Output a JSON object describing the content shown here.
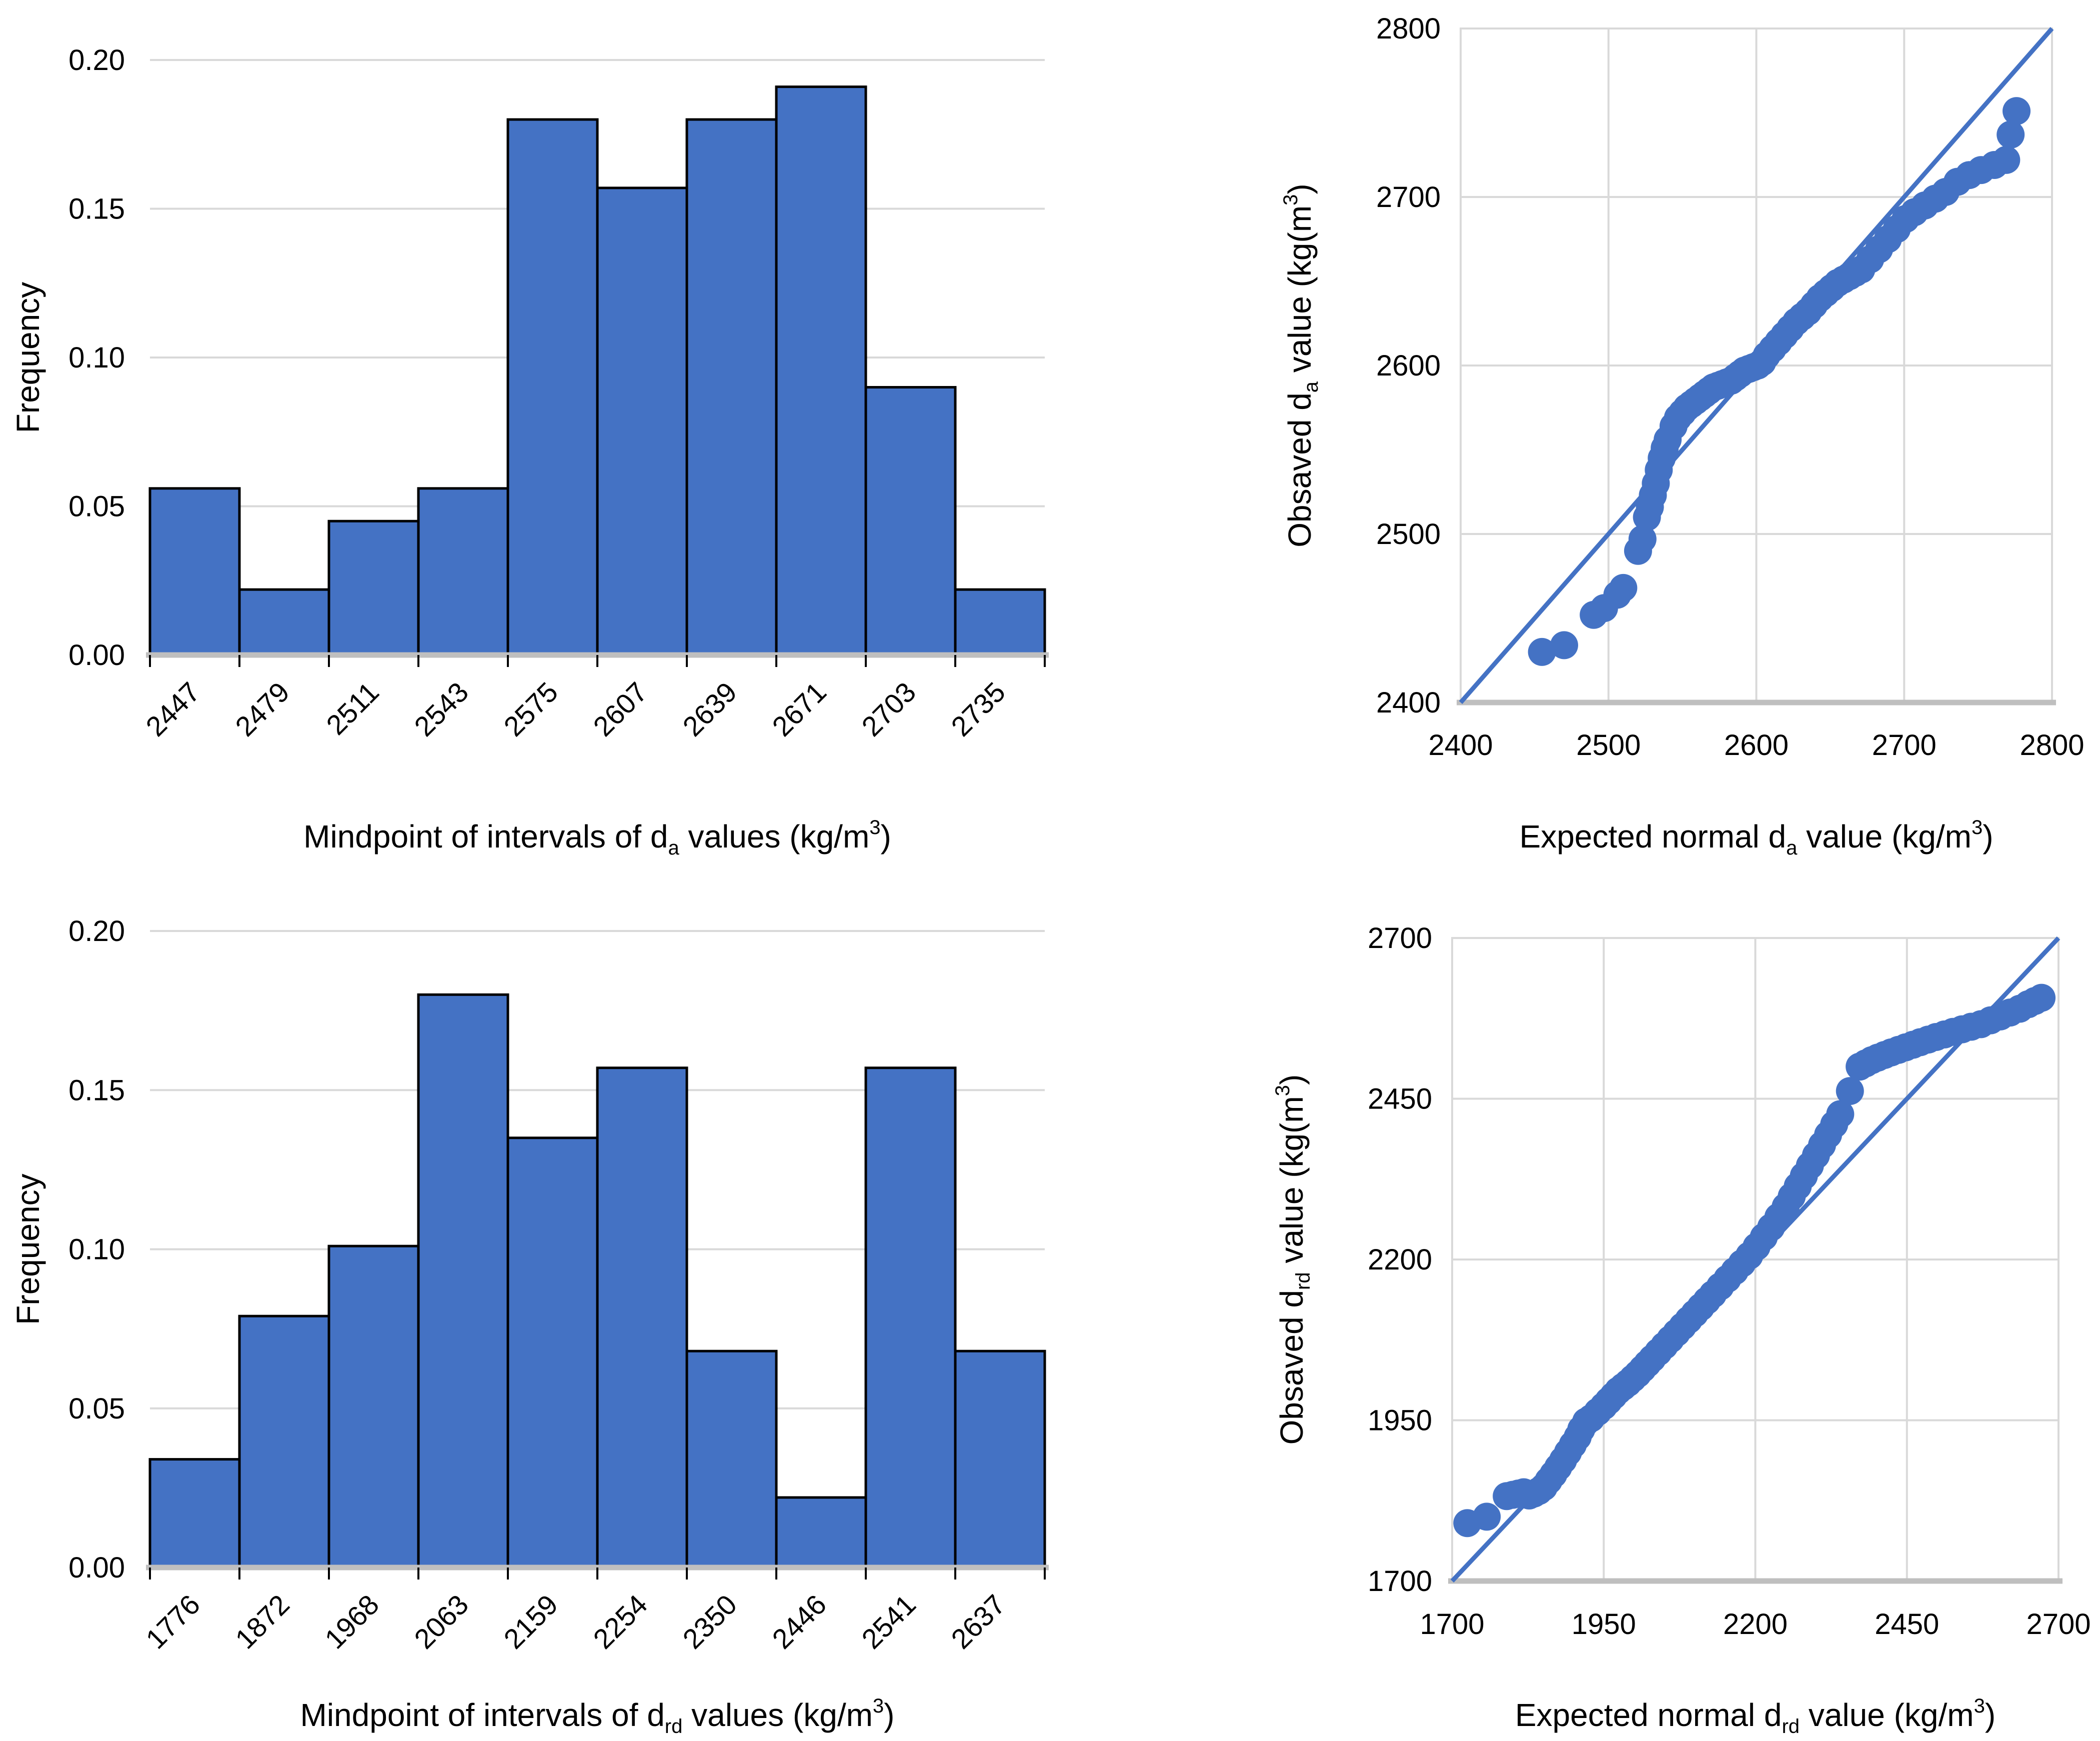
{
  "figure": {
    "background": "#ffffff",
    "accent_color": "#4472C4",
    "gridline_color": "#D9D9D9",
    "axis_line_color": "#BFBFBF",
    "bar_border_color": "#000000",
    "text_color": "#000000"
  },
  "chart_data": [
    {
      "id": "hist_da",
      "type": "bar",
      "title": "",
      "categories": [
        "2447",
        "2479",
        "2511",
        "2543",
        "2575",
        "2607",
        "2639",
        "2671",
        "2703",
        "2735"
      ],
      "values": [
        0.056,
        0.022,
        0.045,
        0.056,
        0.18,
        0.157,
        0.18,
        0.191,
        0.09,
        0.022
      ],
      "xlabel": "Mindpoint of intervals of da values (kg/m3)",
      "xlabel_parts": [
        {
          "t": "Mindpoint of intervals of d"
        },
        {
          "t": "a",
          "sub": true
        },
        {
          "t": " values (kg/m"
        },
        {
          "t": "3",
          "sup": true
        },
        {
          "t": ")"
        }
      ],
      "ylabel": "Frequency",
      "ytick_values": [
        0,
        0.05,
        0.1,
        0.15,
        0.2
      ],
      "ytick_labels": [
        "0.00",
        "0.05",
        "0.10",
        "0.15",
        "0.20"
      ],
      "ylim": [
        0,
        0.2
      ],
      "grid": true,
      "legend": "none"
    },
    {
      "id": "qq_da",
      "type": "scatter",
      "title": "",
      "xlabel": "Expected normal da value (kg/m3)",
      "xlabel_parts": [
        {
          "t": "Expected normal d"
        },
        {
          "t": "a",
          "sub": true
        },
        {
          "t": " value (kg/m"
        },
        {
          "t": "3",
          "sup": true
        },
        {
          "t": ")"
        }
      ],
      "ylabel": "Obsaved da value (kg(m3)",
      "ylabel_parts": [
        {
          "t": "Obsaved d"
        },
        {
          "t": "a",
          "sub": true
        },
        {
          "t": " value (kg(m"
        },
        {
          "t": "3",
          "sup": true
        },
        {
          "t": ")"
        }
      ],
      "xlim": [
        2400,
        2800
      ],
      "ylim": [
        2400,
        2800
      ],
      "xticks": [
        2400,
        2500,
        2600,
        2700,
        2800
      ],
      "yticks": [
        2400,
        2500,
        2600,
        2700,
        2800
      ],
      "grid": true,
      "legend": "none",
      "reference_line": {
        "x1": 2400,
        "y1": 2400,
        "x2": 2800,
        "y2": 2800
      },
      "points": [
        [
          2455,
          2430
        ],
        [
          2470,
          2434
        ],
        [
          2490,
          2452
        ],
        [
          2497,
          2456
        ],
        [
          2506,
          2464
        ],
        [
          2510,
          2468
        ],
        [
          2520,
          2490
        ],
        [
          2523,
          2497
        ],
        [
          2526,
          2510
        ],
        [
          2528,
          2516
        ],
        [
          2530,
          2523
        ],
        [
          2532,
          2530
        ],
        [
          2534,
          2538
        ],
        [
          2536,
          2545
        ],
        [
          2538,
          2551
        ],
        [
          2540,
          2556
        ],
        [
          2544,
          2564
        ],
        [
          2547,
          2569
        ],
        [
          2550,
          2572
        ],
        [
          2553,
          2575
        ],
        [
          2556,
          2577
        ],
        [
          2559,
          2579
        ],
        [
          2562,
          2581
        ],
        [
          2565,
          2583
        ],
        [
          2568,
          2585
        ],
        [
          2571,
          2587
        ],
        [
          2574,
          2588
        ],
        [
          2577,
          2589
        ],
        [
          2580,
          2590
        ],
        [
          2583,
          2591
        ],
        [
          2586,
          2593
        ],
        [
          2589,
          2595
        ],
        [
          2592,
          2597
        ],
        [
          2595,
          2598
        ],
        [
          2598,
          2599
        ],
        [
          2601,
          2600
        ],
        [
          2604,
          2602
        ],
        [
          2607,
          2606
        ],
        [
          2611,
          2610
        ],
        [
          2615,
          2614
        ],
        [
          2619,
          2618
        ],
        [
          2623,
          2622
        ],
        [
          2627,
          2626
        ],
        [
          2631,
          2629
        ],
        [
          2635,
          2632
        ],
        [
          2639,
          2636
        ],
        [
          2643,
          2640
        ],
        [
          2647,
          2643
        ],
        [
          2651,
          2646
        ],
        [
          2655,
          2649
        ],
        [
          2659,
          2651
        ],
        [
          2663,
          2653
        ],
        [
          2667,
          2655
        ],
        [
          2671,
          2657
        ],
        [
          2677,
          2663
        ],
        [
          2683,
          2669
        ],
        [
          2689,
          2675
        ],
        [
          2695,
          2681
        ],
        [
          2701,
          2687
        ],
        [
          2707,
          2691
        ],
        [
          2714,
          2695
        ],
        [
          2721,
          2699
        ],
        [
          2728,
          2703
        ],
        [
          2736,
          2709
        ],
        [
          2744,
          2713
        ],
        [
          2752,
          2716
        ],
        [
          2761,
          2719
        ],
        [
          2769,
          2722
        ],
        [
          2772,
          2737
        ],
        [
          2776,
          2751
        ]
      ]
    },
    {
      "id": "hist_drd",
      "type": "bar",
      "title": "",
      "categories": [
        "1776",
        "1872",
        "1968",
        "2063",
        "2159",
        "2254",
        "2350",
        "2446",
        "2541",
        "2637"
      ],
      "values": [
        0.034,
        0.079,
        0.101,
        0.18,
        0.135,
        0.157,
        0.068,
        0.022,
        0.157,
        0.068
      ],
      "xlabel": "Mindpoint of intervals of drd values (kg/m3)",
      "xlabel_parts": [
        {
          "t": "Mindpoint of intervals of d"
        },
        {
          "t": "rd",
          "sub": true
        },
        {
          "t": " values (kg/m"
        },
        {
          "t": "3",
          "sup": true
        },
        {
          "t": ")"
        }
      ],
      "ylabel": "Frequency",
      "ytick_values": [
        0,
        0.05,
        0.1,
        0.15,
        0.2
      ],
      "ytick_labels": [
        "0.00",
        "0.05",
        "0.10",
        "0.15",
        "0.20"
      ],
      "ylim": [
        0,
        0.2
      ],
      "grid": true,
      "legend": "none"
    },
    {
      "id": "qq_drd",
      "type": "scatter",
      "title": "",
      "xlabel": "Expected normal drd value (kg/m3)",
      "xlabel_parts": [
        {
          "t": "Expected normal d"
        },
        {
          "t": "rd",
          "sub": true
        },
        {
          "t": " value (kg/m"
        },
        {
          "t": "3",
          "sup": true
        },
        {
          "t": ")"
        }
      ],
      "ylabel": "Obsaved drd value (kg(m3)",
      "ylabel_parts": [
        {
          "t": "Obsaved d"
        },
        {
          "t": "rd",
          "sub": true
        },
        {
          "t": " value (kg(m"
        },
        {
          "t": "3",
          "sup": true
        },
        {
          "t": ")"
        }
      ],
      "xlim": [
        1700,
        2700
      ],
      "ylim": [
        1700,
        2700
      ],
      "xticks": [
        1700,
        1950,
        2200,
        2450,
        2700
      ],
      "yticks": [
        1700,
        1950,
        2200,
        2450,
        2700
      ],
      "grid": true,
      "legend": "none",
      "reference_line": {
        "x1": 1700,
        "y1": 1700,
        "x2": 2700,
        "y2": 2700
      },
      "points": [
        [
          1725,
          1790
        ],
        [
          1757,
          1800
        ],
        [
          1790,
          1832
        ],
        [
          1800,
          1834
        ],
        [
          1809,
          1836
        ],
        [
          1818,
          1838
        ],
        [
          1827,
          1833
        ],
        [
          1835,
          1836
        ],
        [
          1843,
          1840
        ],
        [
          1851,
          1846
        ],
        [
          1859,
          1856
        ],
        [
          1867,
          1866
        ],
        [
          1875,
          1877
        ],
        [
          1883,
          1888
        ],
        [
          1891,
          1900
        ],
        [
          1899,
          1912
        ],
        [
          1907,
          1924
        ],
        [
          1913,
          1936
        ],
        [
          1921,
          1948
        ],
        [
          1929,
          1953
        ],
        [
          1940,
          1963
        ],
        [
          1950,
          1972
        ],
        [
          1958,
          1980
        ],
        [
          1966,
          1988
        ],
        [
          1974,
          1996
        ],
        [
          1982,
          2002
        ],
        [
          1990,
          2008
        ],
        [
          1998,
          2015
        ],
        [
          2006,
          2022
        ],
        [
          2014,
          2030
        ],
        [
          2022,
          2038
        ],
        [
          2030,
          2046
        ],
        [
          2040,
          2056
        ],
        [
          2050,
          2066
        ],
        [
          2060,
          2076
        ],
        [
          2070,
          2086
        ],
        [
          2080,
          2096
        ],
        [
          2090,
          2106
        ],
        [
          2100,
          2116
        ],
        [
          2110,
          2126
        ],
        [
          2120,
          2136
        ],
        [
          2130,
          2146
        ],
        [
          2142,
          2158
        ],
        [
          2154,
          2170
        ],
        [
          2166,
          2182
        ],
        [
          2178,
          2194
        ],
        [
          2190,
          2206
        ],
        [
          2202,
          2220
        ],
        [
          2214,
          2235
        ],
        [
          2226,
          2250
        ],
        [
          2238,
          2266
        ],
        [
          2250,
          2282
        ],
        [
          2260,
          2298
        ],
        [
          2270,
          2314
        ],
        [
          2280,
          2330
        ],
        [
          2290,
          2346
        ],
        [
          2300,
          2362
        ],
        [
          2310,
          2378
        ],
        [
          2320,
          2394
        ],
        [
          2330,
          2410
        ],
        [
          2340,
          2426
        ],
        [
          2356,
          2462
        ],
        [
          2372,
          2500
        ],
        [
          2382,
          2505
        ],
        [
          2392,
          2510
        ],
        [
          2402,
          2514
        ],
        [
          2413,
          2518
        ],
        [
          2424,
          2522
        ],
        [
          2436,
          2526
        ],
        [
          2448,
          2530
        ],
        [
          2460,
          2534
        ],
        [
          2472,
          2538
        ],
        [
          2485,
          2542
        ],
        [
          2498,
          2546
        ],
        [
          2512,
          2550
        ],
        [
          2526,
          2554
        ],
        [
          2541,
          2558
        ],
        [
          2556,
          2562
        ],
        [
          2572,
          2566
        ],
        [
          2588,
          2572
        ],
        [
          2604,
          2578
        ],
        [
          2620,
          2584
        ],
        [
          2636,
          2590
        ],
        [
          2650,
          2597
        ],
        [
          2661,
          2602
        ],
        [
          2672,
          2607
        ]
      ]
    }
  ]
}
